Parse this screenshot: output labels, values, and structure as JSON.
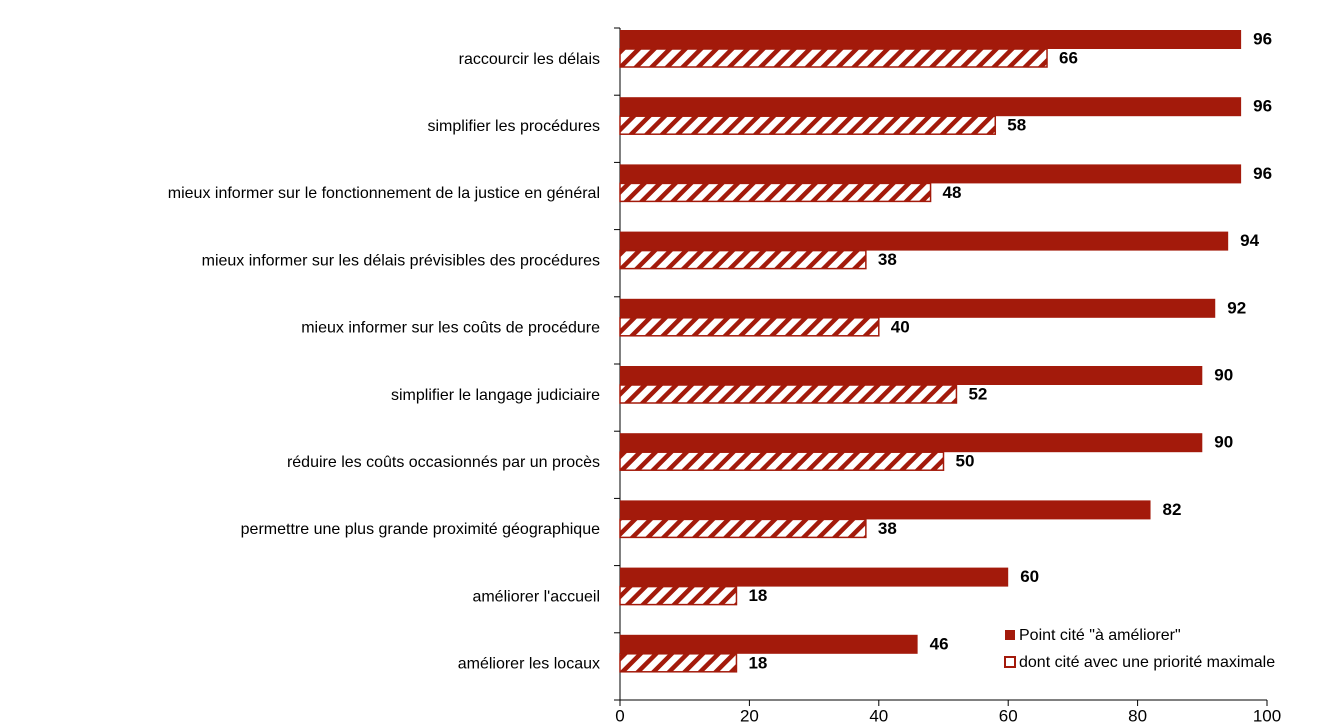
{
  "chart_data": {
    "type": "hbar",
    "categories": [
      "raccourcir les délais",
      "simplifier les procédures",
      "mieux informer sur le fonctionnement de la justice en général",
      "mieux informer sur les délais prévisibles des procédures",
      "mieux informer sur les coûts de procédure",
      "simplifier le langage judiciaire",
      "réduire les coûts occasionnés par un procès",
      "permettre une plus grande proximité géographique",
      "améliorer l'accueil",
      "améliorer les locaux"
    ],
    "series": [
      {
        "name": "Point cité \"à améliorer\"",
        "color": "#a31a0b",
        "fill": "solid",
        "values": [
          96,
          96,
          96,
          94,
          92,
          90,
          90,
          82,
          60,
          46
        ]
      },
      {
        "name": "dont cité avec une priorité maximale",
        "color": "#a31a0b",
        "fill": "hatched",
        "values": [
          66,
          58,
          48,
          38,
          40,
          52,
          50,
          38,
          18,
          18
        ]
      }
    ],
    "xlim": [
      0,
      100
    ],
    "xticks": [
      0,
      20,
      40,
      60,
      80,
      100
    ],
    "legend": "lower right"
  }
}
